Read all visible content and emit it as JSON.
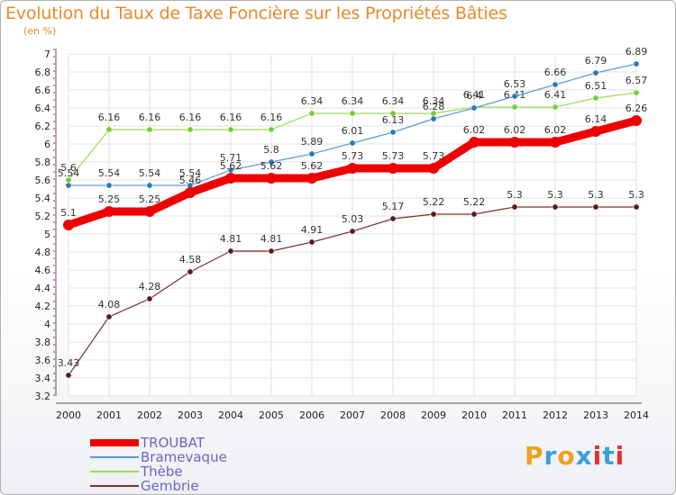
{
  "header": {
    "title": "Evolution du Taux de Taxe Foncière sur les Propriétés Bâties",
    "subtitle": "(en %)"
  },
  "logo": {
    "text": "Proxiti",
    "letters": [
      "P",
      "r",
      "o",
      "x",
      "i",
      "t",
      "i"
    ],
    "colors": [
      "#f0a020",
      "#3aa0d8",
      "#f0a020",
      "#3aa0d8",
      "#e83030",
      "#3aa0d8",
      "#e83030"
    ]
  },
  "chart_data": {
    "type": "line",
    "title": "Evolution du Taux de Taxe Foncière sur les Propriétés Bâties",
    "ylabel": "(en %)",
    "xlabel": "",
    "x": [
      "2000",
      "2001",
      "2002",
      "2003",
      "2004",
      "2005",
      "2006",
      "2007",
      "2008",
      "2009",
      "2010",
      "2011",
      "2012",
      "2013",
      "2014"
    ],
    "yticks": [
      "3.2",
      "3.4",
      "3.6",
      "3.8",
      "4",
      "4.2",
      "4.4",
      "4.6",
      "4.8",
      "5",
      "5.2",
      "5.4",
      "5.6",
      "5.8",
      "6",
      "6.2",
      "6.4",
      "6.6",
      "6.8",
      "7"
    ],
    "ylim": [
      3.2,
      7.0
    ],
    "grid": true,
    "legend_position": "bottom-left",
    "series": [
      {
        "name": "TROUBAT",
        "color": "#ee0000",
        "emphasis": true,
        "values": [
          5.1,
          5.25,
          5.25,
          5.46,
          5.62,
          5.62,
          5.62,
          5.73,
          5.73,
          5.73,
          6.02,
          6.02,
          6.02,
          6.14,
          6.26
        ],
        "labels": [
          "5.1",
          "5.25",
          "5.25",
          "5.46",
          "5.62",
          "5.62",
          "5.62",
          "5.73",
          "5.73",
          "5.73",
          "6.02",
          "6.02",
          "6.02",
          "6.14",
          "6.26"
        ]
      },
      {
        "name": "Bramevaque",
        "color": "#5b9bd5",
        "marker": "#2e75b6",
        "emphasis": false,
        "values": [
          5.54,
          5.54,
          5.54,
          5.54,
          5.71,
          5.8,
          5.89,
          6.01,
          6.13,
          6.28,
          6.4,
          6.53,
          6.66,
          6.79,
          6.89
        ],
        "labels": [
          "5.54",
          "5.54",
          "5.54",
          "5.54",
          "5.71",
          "5.8",
          "5.89",
          "6.01",
          "6.13",
          "6.28",
          "6.4",
          "6.53",
          "6.66",
          "6.79",
          "6.89"
        ]
      },
      {
        "name": "Thèbe",
        "color": "#99dd55",
        "marker": "#77cc33",
        "emphasis": false,
        "values": [
          5.6,
          6.16,
          6.16,
          6.16,
          6.16,
          6.16,
          6.34,
          6.34,
          6.34,
          6.34,
          6.41,
          6.41,
          6.41,
          6.51,
          6.57
        ],
        "labels": [
          "5.6",
          "6.16",
          "6.16",
          "6.16",
          "6.16",
          "6.16",
          "6.34",
          "6.34",
          "6.34",
          "6.34",
          "6.41",
          "6.41",
          "6.41",
          "6.51",
          "6.57"
        ]
      },
      {
        "name": "Gembrie",
        "color": "#7a3030",
        "marker": "#5a1a1a",
        "emphasis": false,
        "values": [
          3.43,
          4.08,
          4.28,
          4.58,
          4.81,
          4.81,
          4.91,
          5.03,
          5.17,
          5.22,
          5.22,
          5.3,
          5.3,
          5.3,
          5.3
        ],
        "labels": [
          "3.43",
          "4.08",
          "4.28",
          "4.58",
          "4.81",
          "4.81",
          "4.91",
          "5.03",
          "5.17",
          "5.22",
          "5.22",
          "5.3",
          "5.3",
          "5.3",
          "5.3"
        ]
      }
    ]
  }
}
